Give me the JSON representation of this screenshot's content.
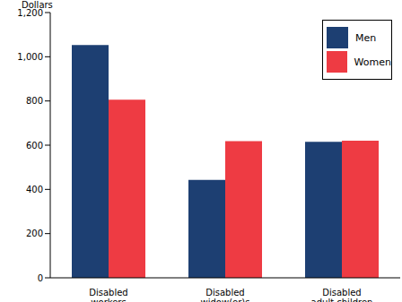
{
  "chart_data": {
    "type": "bar",
    "y_label": "Dollars",
    "categories": [
      "Disabled workers",
      "Disabled widow(er)s",
      "Disabled adult children"
    ],
    "series": [
      {
        "name": "Men",
        "color": "#1d3f72",
        "values": [
          1053,
          443,
          615
        ]
      },
      {
        "name": "Women",
        "color": "#ee3b43",
        "values": [
          806,
          618,
          620
        ]
      }
    ],
    "ylim": [
      0,
      1200
    ],
    "yticks": [
      0,
      200,
      400,
      600,
      800,
      {
        "value": 1000,
        "label": "1,000"
      },
      {
        "value": 1200,
        "label": "1,200"
      }
    ],
    "grid": false,
    "legend": "top-right"
  }
}
